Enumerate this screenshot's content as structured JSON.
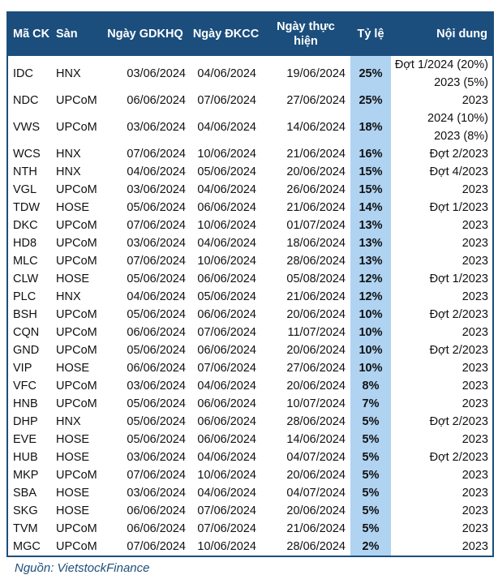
{
  "colors": {
    "header_bg": "#1B4E7D",
    "header_text": "#FFFFFF",
    "ratio_column_bg": "#AFD3F1",
    "table_border": "#1B4E7D",
    "source_text": "#1F4E79",
    "body_text": "#111111"
  },
  "chart_data": {
    "type": "table",
    "source": "Nguồn: VietstockFinance",
    "columns": [
      {
        "key": "ma_ck",
        "label": "Mã CK"
      },
      {
        "key": "san",
        "label": "Sàn"
      },
      {
        "key": "ngay_gdkhq",
        "label": "Ngày GDKHQ"
      },
      {
        "key": "ngay_dkcc",
        "label": "Ngày ĐKCC"
      },
      {
        "key": "ngay_thuc_hien",
        "label": "Ngày thực hiện"
      },
      {
        "key": "ty_le",
        "label": "Tỷ lệ"
      },
      {
        "key": "noi_dung",
        "label": "Nội dung"
      }
    ],
    "rows": [
      {
        "ma_ck": "IDC",
        "san": "HNX",
        "ngay_gdkhq": "03/06/2024",
        "ngay_dkcc": "04/06/2024",
        "ngay_thuc_hien": "19/06/2024",
        "ty_le": "25%",
        "noi_dung": [
          "Đợt 1/2024 (20%)",
          "2023 (5%)"
        ]
      },
      {
        "ma_ck": "NDC",
        "san": "UPCoM",
        "ngay_gdkhq": "06/06/2024",
        "ngay_dkcc": "07/06/2024",
        "ngay_thuc_hien": "27/06/2024",
        "ty_le": "25%",
        "noi_dung": [
          "2023"
        ]
      },
      {
        "ma_ck": "VWS",
        "san": "UPCoM",
        "ngay_gdkhq": "03/06/2024",
        "ngay_dkcc": "04/06/2024",
        "ngay_thuc_hien": "14/06/2024",
        "ty_le": "18%",
        "noi_dung": [
          "2024 (10%)",
          "2023 (8%)"
        ]
      },
      {
        "ma_ck": "WCS",
        "san": "HNX",
        "ngay_gdkhq": "07/06/2024",
        "ngay_dkcc": "10/06/2024",
        "ngay_thuc_hien": "21/06/2024",
        "ty_le": "16%",
        "noi_dung": [
          "Đợt 2/2023"
        ]
      },
      {
        "ma_ck": "NTH",
        "san": "HNX",
        "ngay_gdkhq": "04/06/2024",
        "ngay_dkcc": "05/06/2024",
        "ngay_thuc_hien": "20/06/2024",
        "ty_le": "15%",
        "noi_dung": [
          "Đợt 4/2023"
        ]
      },
      {
        "ma_ck": "VGL",
        "san": "UPCoM",
        "ngay_gdkhq": "03/06/2024",
        "ngay_dkcc": "04/06/2024",
        "ngay_thuc_hien": "26/06/2024",
        "ty_le": "15%",
        "noi_dung": [
          "2023"
        ]
      },
      {
        "ma_ck": "TDW",
        "san": "HOSE",
        "ngay_gdkhq": "05/06/2024",
        "ngay_dkcc": "06/06/2024",
        "ngay_thuc_hien": "21/06/2024",
        "ty_le": "14%",
        "noi_dung": [
          "Đợt 1/2023"
        ]
      },
      {
        "ma_ck": "DKC",
        "san": "UPCoM",
        "ngay_gdkhq": "07/06/2024",
        "ngay_dkcc": "10/06/2024",
        "ngay_thuc_hien": "01/07/2024",
        "ty_le": "13%",
        "noi_dung": [
          "2023"
        ]
      },
      {
        "ma_ck": "HD8",
        "san": "UPCoM",
        "ngay_gdkhq": "03/06/2024",
        "ngay_dkcc": "04/06/2024",
        "ngay_thuc_hien": "18/06/2024",
        "ty_le": "13%",
        "noi_dung": [
          "2023"
        ]
      },
      {
        "ma_ck": "MLC",
        "san": "UPCoM",
        "ngay_gdkhq": "07/06/2024",
        "ngay_dkcc": "10/06/2024",
        "ngay_thuc_hien": "28/06/2024",
        "ty_le": "13%",
        "noi_dung": [
          "2023"
        ]
      },
      {
        "ma_ck": "CLW",
        "san": "HOSE",
        "ngay_gdkhq": "05/06/2024",
        "ngay_dkcc": "06/06/2024",
        "ngay_thuc_hien": "05/08/2024",
        "ty_le": "12%",
        "noi_dung": [
          "Đợt 1/2023"
        ]
      },
      {
        "ma_ck": "PLC",
        "san": "HNX",
        "ngay_gdkhq": "04/06/2024",
        "ngay_dkcc": "05/06/2024",
        "ngay_thuc_hien": "21/06/2024",
        "ty_le": "12%",
        "noi_dung": [
          "2023"
        ]
      },
      {
        "ma_ck": "BSH",
        "san": "UPCoM",
        "ngay_gdkhq": "05/06/2024",
        "ngay_dkcc": "06/06/2024",
        "ngay_thuc_hien": "20/06/2024",
        "ty_le": "10%",
        "noi_dung": [
          "Đợt 2/2023"
        ]
      },
      {
        "ma_ck": "CQN",
        "san": "UPCoM",
        "ngay_gdkhq": "06/06/2024",
        "ngay_dkcc": "07/06/2024",
        "ngay_thuc_hien": "11/07/2024",
        "ty_le": "10%",
        "noi_dung": [
          "2023"
        ]
      },
      {
        "ma_ck": "GND",
        "san": "UPCoM",
        "ngay_gdkhq": "05/06/2024",
        "ngay_dkcc": "06/06/2024",
        "ngay_thuc_hien": "20/06/2024",
        "ty_le": "10%",
        "noi_dung": [
          "Đợt 2/2023"
        ]
      },
      {
        "ma_ck": "VIP",
        "san": "HOSE",
        "ngay_gdkhq": "06/06/2024",
        "ngay_dkcc": "07/06/2024",
        "ngay_thuc_hien": "27/06/2024",
        "ty_le": "10%",
        "noi_dung": [
          "2023"
        ]
      },
      {
        "ma_ck": "VFC",
        "san": "UPCoM",
        "ngay_gdkhq": "03/06/2024",
        "ngay_dkcc": "04/06/2024",
        "ngay_thuc_hien": "20/06/2024",
        "ty_le": "8%",
        "noi_dung": [
          "2023"
        ]
      },
      {
        "ma_ck": "HNB",
        "san": "UPCoM",
        "ngay_gdkhq": "05/06/2024",
        "ngay_dkcc": "06/06/2024",
        "ngay_thuc_hien": "10/07/2024",
        "ty_le": "7%",
        "noi_dung": [
          "2023"
        ]
      },
      {
        "ma_ck": "DHP",
        "san": "HNX",
        "ngay_gdkhq": "05/06/2024",
        "ngay_dkcc": "06/06/2024",
        "ngay_thuc_hien": "28/06/2024",
        "ty_le": "5%",
        "noi_dung": [
          "Đợt 2/2023"
        ]
      },
      {
        "ma_ck": "EVE",
        "san": "HOSE",
        "ngay_gdkhq": "05/06/2024",
        "ngay_dkcc": "06/06/2024",
        "ngay_thuc_hien": "14/06/2024",
        "ty_le": "5%",
        "noi_dung": [
          "2023"
        ]
      },
      {
        "ma_ck": "HUB",
        "san": "HOSE",
        "ngay_gdkhq": "03/06/2024",
        "ngay_dkcc": "04/06/2024",
        "ngay_thuc_hien": "04/07/2024",
        "ty_le": "5%",
        "noi_dung": [
          "Đợt 2/2023"
        ]
      },
      {
        "ma_ck": "MKP",
        "san": "UPCoM",
        "ngay_gdkhq": "07/06/2024",
        "ngay_dkcc": "10/06/2024",
        "ngay_thuc_hien": "20/06/2024",
        "ty_le": "5%",
        "noi_dung": [
          "2023"
        ]
      },
      {
        "ma_ck": "SBA",
        "san": "HOSE",
        "ngay_gdkhq": "03/06/2024",
        "ngay_dkcc": "04/06/2024",
        "ngay_thuc_hien": "04/07/2024",
        "ty_le": "5%",
        "noi_dung": [
          "2023"
        ]
      },
      {
        "ma_ck": "SKG",
        "san": "HOSE",
        "ngay_gdkhq": "06/06/2024",
        "ngay_dkcc": "07/06/2024",
        "ngay_thuc_hien": "20/06/2024",
        "ty_le": "5%",
        "noi_dung": [
          "2023"
        ]
      },
      {
        "ma_ck": "TVM",
        "san": "UPCoM",
        "ngay_gdkhq": "06/06/2024",
        "ngay_dkcc": "07/06/2024",
        "ngay_thuc_hien": "21/06/2024",
        "ty_le": "5%",
        "noi_dung": [
          "2023"
        ]
      },
      {
        "ma_ck": "MGC",
        "san": "UPCoM",
        "ngay_gdkhq": "07/06/2024",
        "ngay_dkcc": "10/06/2024",
        "ngay_thuc_hien": "28/06/2024",
        "ty_le": "2%",
        "noi_dung": [
          "2023"
        ]
      }
    ]
  }
}
